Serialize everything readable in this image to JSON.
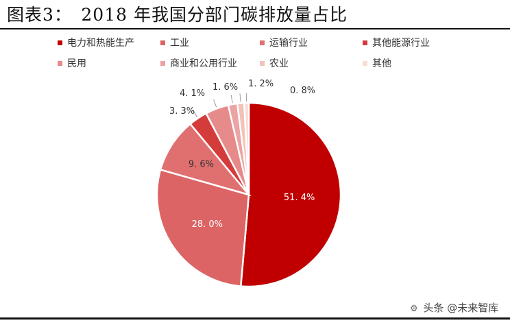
{
  "figure": {
    "title": "图表3：　2018 年我国分部门碳排放量占比"
  },
  "chart_data": {
    "type": "pie",
    "categories": [
      "电力和热能生产",
      "工业",
      "运输行业",
      "其他能源行业",
      "民用",
      "商业和公用行业",
      "农业",
      "其他"
    ],
    "values": [
      51.4,
      28.0,
      9.6,
      3.3,
      4.1,
      1.6,
      1.2,
      0.8
    ],
    "labels": [
      "51. 4%",
      "28. 0%",
      "9. 6%",
      "3. 3%",
      "4. 1%",
      "1. 6%",
      "1. 2%",
      "0. 8%"
    ],
    "colors": [
      "#c00000",
      "#dc6464",
      "#e07070",
      "#d43b3b",
      "#e68a8a",
      "#eba3a3",
      "#f1c2b8",
      "#f6dcd2"
    ],
    "legend_position": "top",
    "start": "12 o'clock",
    "direction": "clockwise"
  },
  "watermark": {
    "text": "头条 @未来智库"
  }
}
